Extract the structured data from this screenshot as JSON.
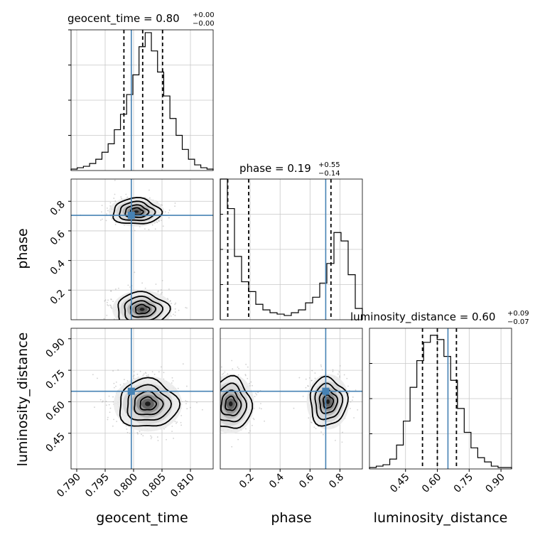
{
  "chart_data": {
    "type": "corner",
    "parameters": [
      {
        "name": "geocent_time",
        "range": [
          0.789,
          0.814
        ],
        "ticks": [
          0.79,
          0.795,
          0.8,
          0.805,
          0.81
        ],
        "tick_labels": [
          "0.790",
          "0.795",
          "0.800",
          "0.805",
          "0.810"
        ],
        "truth": 0.7996,
        "quantiles": [
          0.7983,
          0.8016,
          0.8051
        ],
        "title_main": "geocent_time = 0.80",
        "title_plus": "+0.00",
        "title_minus": "−0.00"
      },
      {
        "name": "phase",
        "range": [
          0.0,
          0.95
        ],
        "ticks": [
          0.2,
          0.4,
          0.6,
          0.8
        ],
        "tick_labels": [
          "0.2",
          "0.4",
          "0.6",
          "0.8"
        ],
        "truth": 0.705,
        "quantiles": [
          0.05,
          0.19,
          0.74
        ],
        "title_main": "phase = 0.19",
        "title_plus": "+0.55",
        "title_minus": "−0.14"
      },
      {
        "name": "luminosity_distance",
        "range": [
          0.28,
          0.95
        ],
        "ticks": [
          0.45,
          0.6,
          0.75,
          0.9
        ],
        "tick_labels": [
          "0.45",
          "0.60",
          "0.75",
          "0.90"
        ],
        "truth": 0.65,
        "quantiles": [
          0.53,
          0.6,
          0.69
        ],
        "title_main": "luminosity_distance = 0.60",
        "title_plus": "+0.09",
        "title_minus": "−0.07"
      }
    ],
    "hist_1d": {
      "geocent_time": [
        0.01,
        0.02,
        0.03,
        0.05,
        0.08,
        0.13,
        0.19,
        0.29,
        0.4,
        0.54,
        0.68,
        0.88,
        0.98,
        0.85,
        0.7,
        0.53,
        0.37,
        0.25,
        0.15,
        0.08,
        0.04,
        0.02,
        0.01
      ],
      "phase": [
        1.0,
        0.79,
        0.45,
        0.27,
        0.2,
        0.11,
        0.07,
        0.05,
        0.04,
        0.03,
        0.05,
        0.07,
        0.12,
        0.16,
        0.26,
        0.4,
        0.62,
        0.56,
        0.32,
        0.08
      ],
      "luminosity_distance": [
        0.01,
        0.02,
        0.03,
        0.07,
        0.17,
        0.34,
        0.58,
        0.77,
        0.9,
        0.95,
        0.92,
        0.8,
        0.63,
        0.43,
        0.26,
        0.15,
        0.08,
        0.05,
        0.02,
        0.01,
        0.01
      ]
    },
    "mode_2d": {
      "phase_vs_geocent_time": [
        {
          "x": 0.8005,
          "y": 0.73
        },
        {
          "x": 0.8015,
          "y": 0.07
        }
      ],
      "luminosity_distance_vs_geocent_time": [
        {
          "x": 0.8025,
          "y": 0.59
        }
      ],
      "luminosity_distance_vs_phase": [
        {
          "x": 0.07,
          "y": 0.59
        },
        {
          "x": 0.72,
          "y": 0.6
        }
      ]
    },
    "truth_color": "#4682b4",
    "grid": true
  }
}
